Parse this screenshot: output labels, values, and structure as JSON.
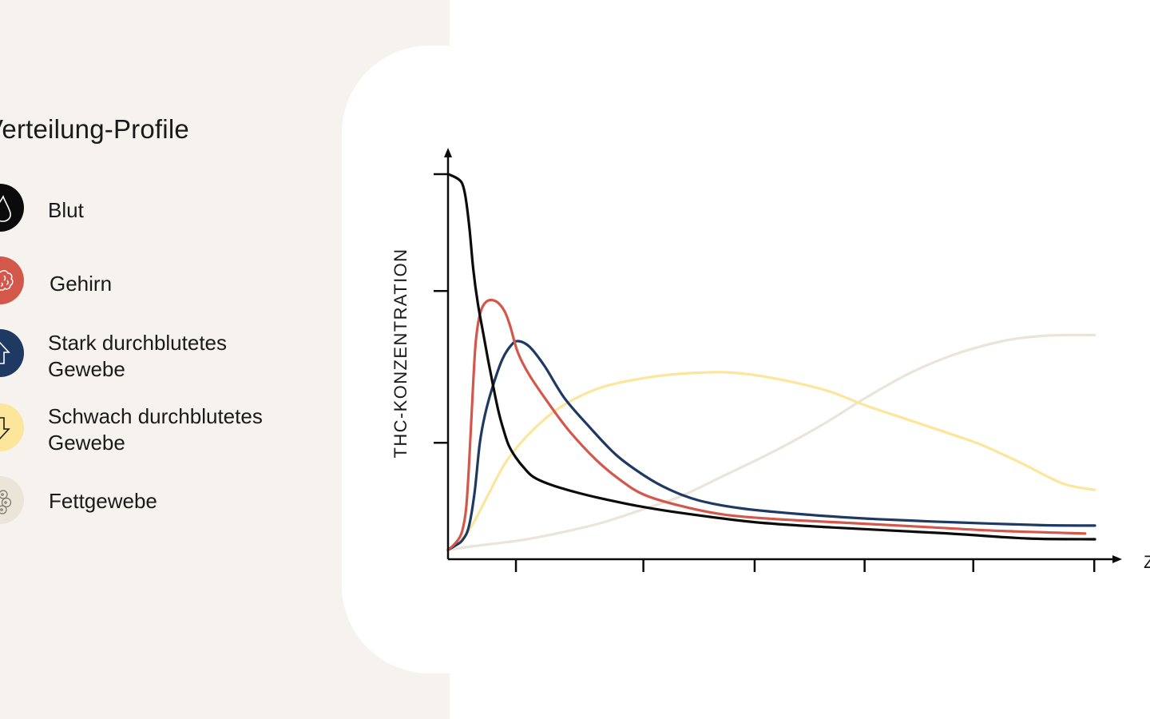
{
  "legend": {
    "title": "Verteilung-Profile",
    "items": [
      {
        "label": "Blut",
        "color": "#0b0b0b",
        "icon": "drop-icon"
      },
      {
        "label": "Gehirn",
        "color": "#d4574b",
        "icon": "brain-icon"
      },
      {
        "label": "Stark durchblutetes\nGewebe",
        "color": "#1e3a63",
        "icon": "arrow-up-icon"
      },
      {
        "label": "Schwach durchblutetes\nGewebe",
        "color": "#fbe69b",
        "icon": "arrow-down-icon"
      },
      {
        "label": "Fettgewebe",
        "color": "#ebe4d8",
        "icon": "fat-cells-icon"
      }
    ]
  },
  "chart_data": {
    "type": "line",
    "ylabel": "THC-KONZENTRATION",
    "xlabel": "Z",
    "xlim": [
      0,
      100
    ],
    "ylim": [
      0,
      100
    ],
    "x_ticks": [
      10.5,
      30.2,
      47.4,
      64.4,
      81.2,
      99.9
    ],
    "y_ticks": [
      29.2,
      69.2,
      100
    ],
    "grid": false,
    "legend_position": "left",
    "series": [
      {
        "name": "Blut",
        "color": "#0b0b0b",
        "points": [
          [
            0,
            100
          ],
          [
            0.6,
            99.6
          ],
          [
            1.5,
            98.8
          ],
          [
            2.2,
            97.5
          ],
          [
            2.7,
            94
          ],
          [
            3.3,
            86
          ],
          [
            3.9,
            75
          ],
          [
            4.6,
            66
          ],
          [
            5.4,
            58.5
          ],
          [
            6.2,
            51
          ],
          [
            7.0,
            44
          ],
          [
            7.8,
            37.5
          ],
          [
            8.6,
            32.5
          ],
          [
            9.4,
            28.5
          ],
          [
            10.5,
            25.3
          ],
          [
            11.8,
            22.5
          ],
          [
            13.2,
            20.2
          ],
          [
            15.8,
            18.2
          ],
          [
            19.5,
            16.3
          ],
          [
            23.3,
            14.7
          ],
          [
            29.5,
            12.5
          ],
          [
            36.5,
            10.6
          ],
          [
            47.4,
            8.3
          ],
          [
            59.3,
            6.9
          ],
          [
            76.5,
            5.4
          ],
          [
            89.5,
            4.0
          ],
          [
            100,
            3.8
          ]
        ]
      },
      {
        "name": "Gehirn",
        "color": "#d4574b",
        "points": [
          [
            0,
            1
          ],
          [
            0.7,
            2
          ],
          [
            1.5,
            3.5
          ],
          [
            2.2,
            6
          ],
          [
            2.8,
            12
          ],
          [
            3.3,
            25
          ],
          [
            3.8,
            42
          ],
          [
            4.3,
            56
          ],
          [
            5.0,
            63.5
          ],
          [
            6.0,
            66.5
          ],
          [
            7.4,
            66.5
          ],
          [
            8.7,
            64
          ],
          [
            9.6,
            60
          ],
          [
            10.8,
            53
          ],
          [
            12.6,
            47
          ],
          [
            15.8,
            39
          ],
          [
            18.9,
            32
          ],
          [
            22.9,
            24.7
          ],
          [
            26.4,
            19.7
          ],
          [
            30.2,
            15.6
          ],
          [
            35.9,
            12.6
          ],
          [
            42.6,
            10.3
          ],
          [
            49.8,
            9.2
          ],
          [
            60.6,
            8.2
          ],
          [
            73.0,
            7.1
          ],
          [
            85.2,
            6.0
          ],
          [
            98.5,
            5.3
          ]
        ]
      },
      {
        "name": "Stark durchblutetes Gewebe",
        "color": "#1e3a63",
        "points": [
          [
            0,
            1
          ],
          [
            1.0,
            2
          ],
          [
            2.2,
            3.5
          ],
          [
            3.2,
            7
          ],
          [
            4.1,
            16
          ],
          [
            4.9,
            29
          ],
          [
            5.7,
            36.5
          ],
          [
            6.9,
            44
          ],
          [
            8.4,
            51.2
          ],
          [
            9.8,
            55
          ],
          [
            10.9,
            56
          ],
          [
            12.6,
            54.5
          ],
          [
            14.9,
            49.5
          ],
          [
            18.0,
            41
          ],
          [
            21.8,
            33.5
          ],
          [
            26.0,
            26
          ],
          [
            30.4,
            20.5
          ],
          [
            34.1,
            17
          ],
          [
            38.8,
            14
          ],
          [
            45.5,
            11.9
          ],
          [
            55.4,
            10.3
          ],
          [
            66.3,
            9.1
          ],
          [
            79.0,
            8.2
          ],
          [
            91.8,
            7.5
          ],
          [
            100,
            7.4
          ]
        ]
      },
      {
        "name": "Schwach durchblutetes Gewebe",
        "color": "#fbe69b",
        "points": [
          [
            0,
            1
          ],
          [
            2.0,
            3.5
          ],
          [
            3.9,
            8
          ],
          [
            6.2,
            15.5
          ],
          [
            8.7,
            23.5
          ],
          [
            11.4,
            29.5
          ],
          [
            15.0,
            35.5
          ],
          [
            18.7,
            40
          ],
          [
            24.1,
            44
          ],
          [
            31.2,
            46.5
          ],
          [
            37.8,
            47.6
          ],
          [
            43.9,
            47.7
          ],
          [
            50.1,
            46.3
          ],
          [
            58.5,
            43
          ],
          [
            64.3,
            39.2
          ],
          [
            71.1,
            35.3
          ],
          [
            78.3,
            31.2
          ],
          [
            82.7,
            28.5
          ],
          [
            88.7,
            23.8
          ],
          [
            95.0,
            18.5
          ],
          [
            100,
            16.8
          ]
        ]
      },
      {
        "name": "Fettgewebe",
        "color": "#ebe4d8",
        "points": [
          [
            0,
            1
          ],
          [
            5.0,
            2.2
          ],
          [
            11.1,
            3.5
          ],
          [
            17.3,
            5.5
          ],
          [
            23.5,
            8
          ],
          [
            29.5,
            11.3
          ],
          [
            36.1,
            15.2
          ],
          [
            42.6,
            20.5
          ],
          [
            50.2,
            26.8
          ],
          [
            57.6,
            33.7
          ],
          [
            64.5,
            41
          ],
          [
            71.3,
            47.5
          ],
          [
            78.3,
            52.5
          ],
          [
            85.7,
            56
          ],
          [
            90.7,
            57.2
          ],
          [
            95.1,
            57.6
          ],
          [
            100,
            57.6
          ]
        ]
      }
    ]
  }
}
